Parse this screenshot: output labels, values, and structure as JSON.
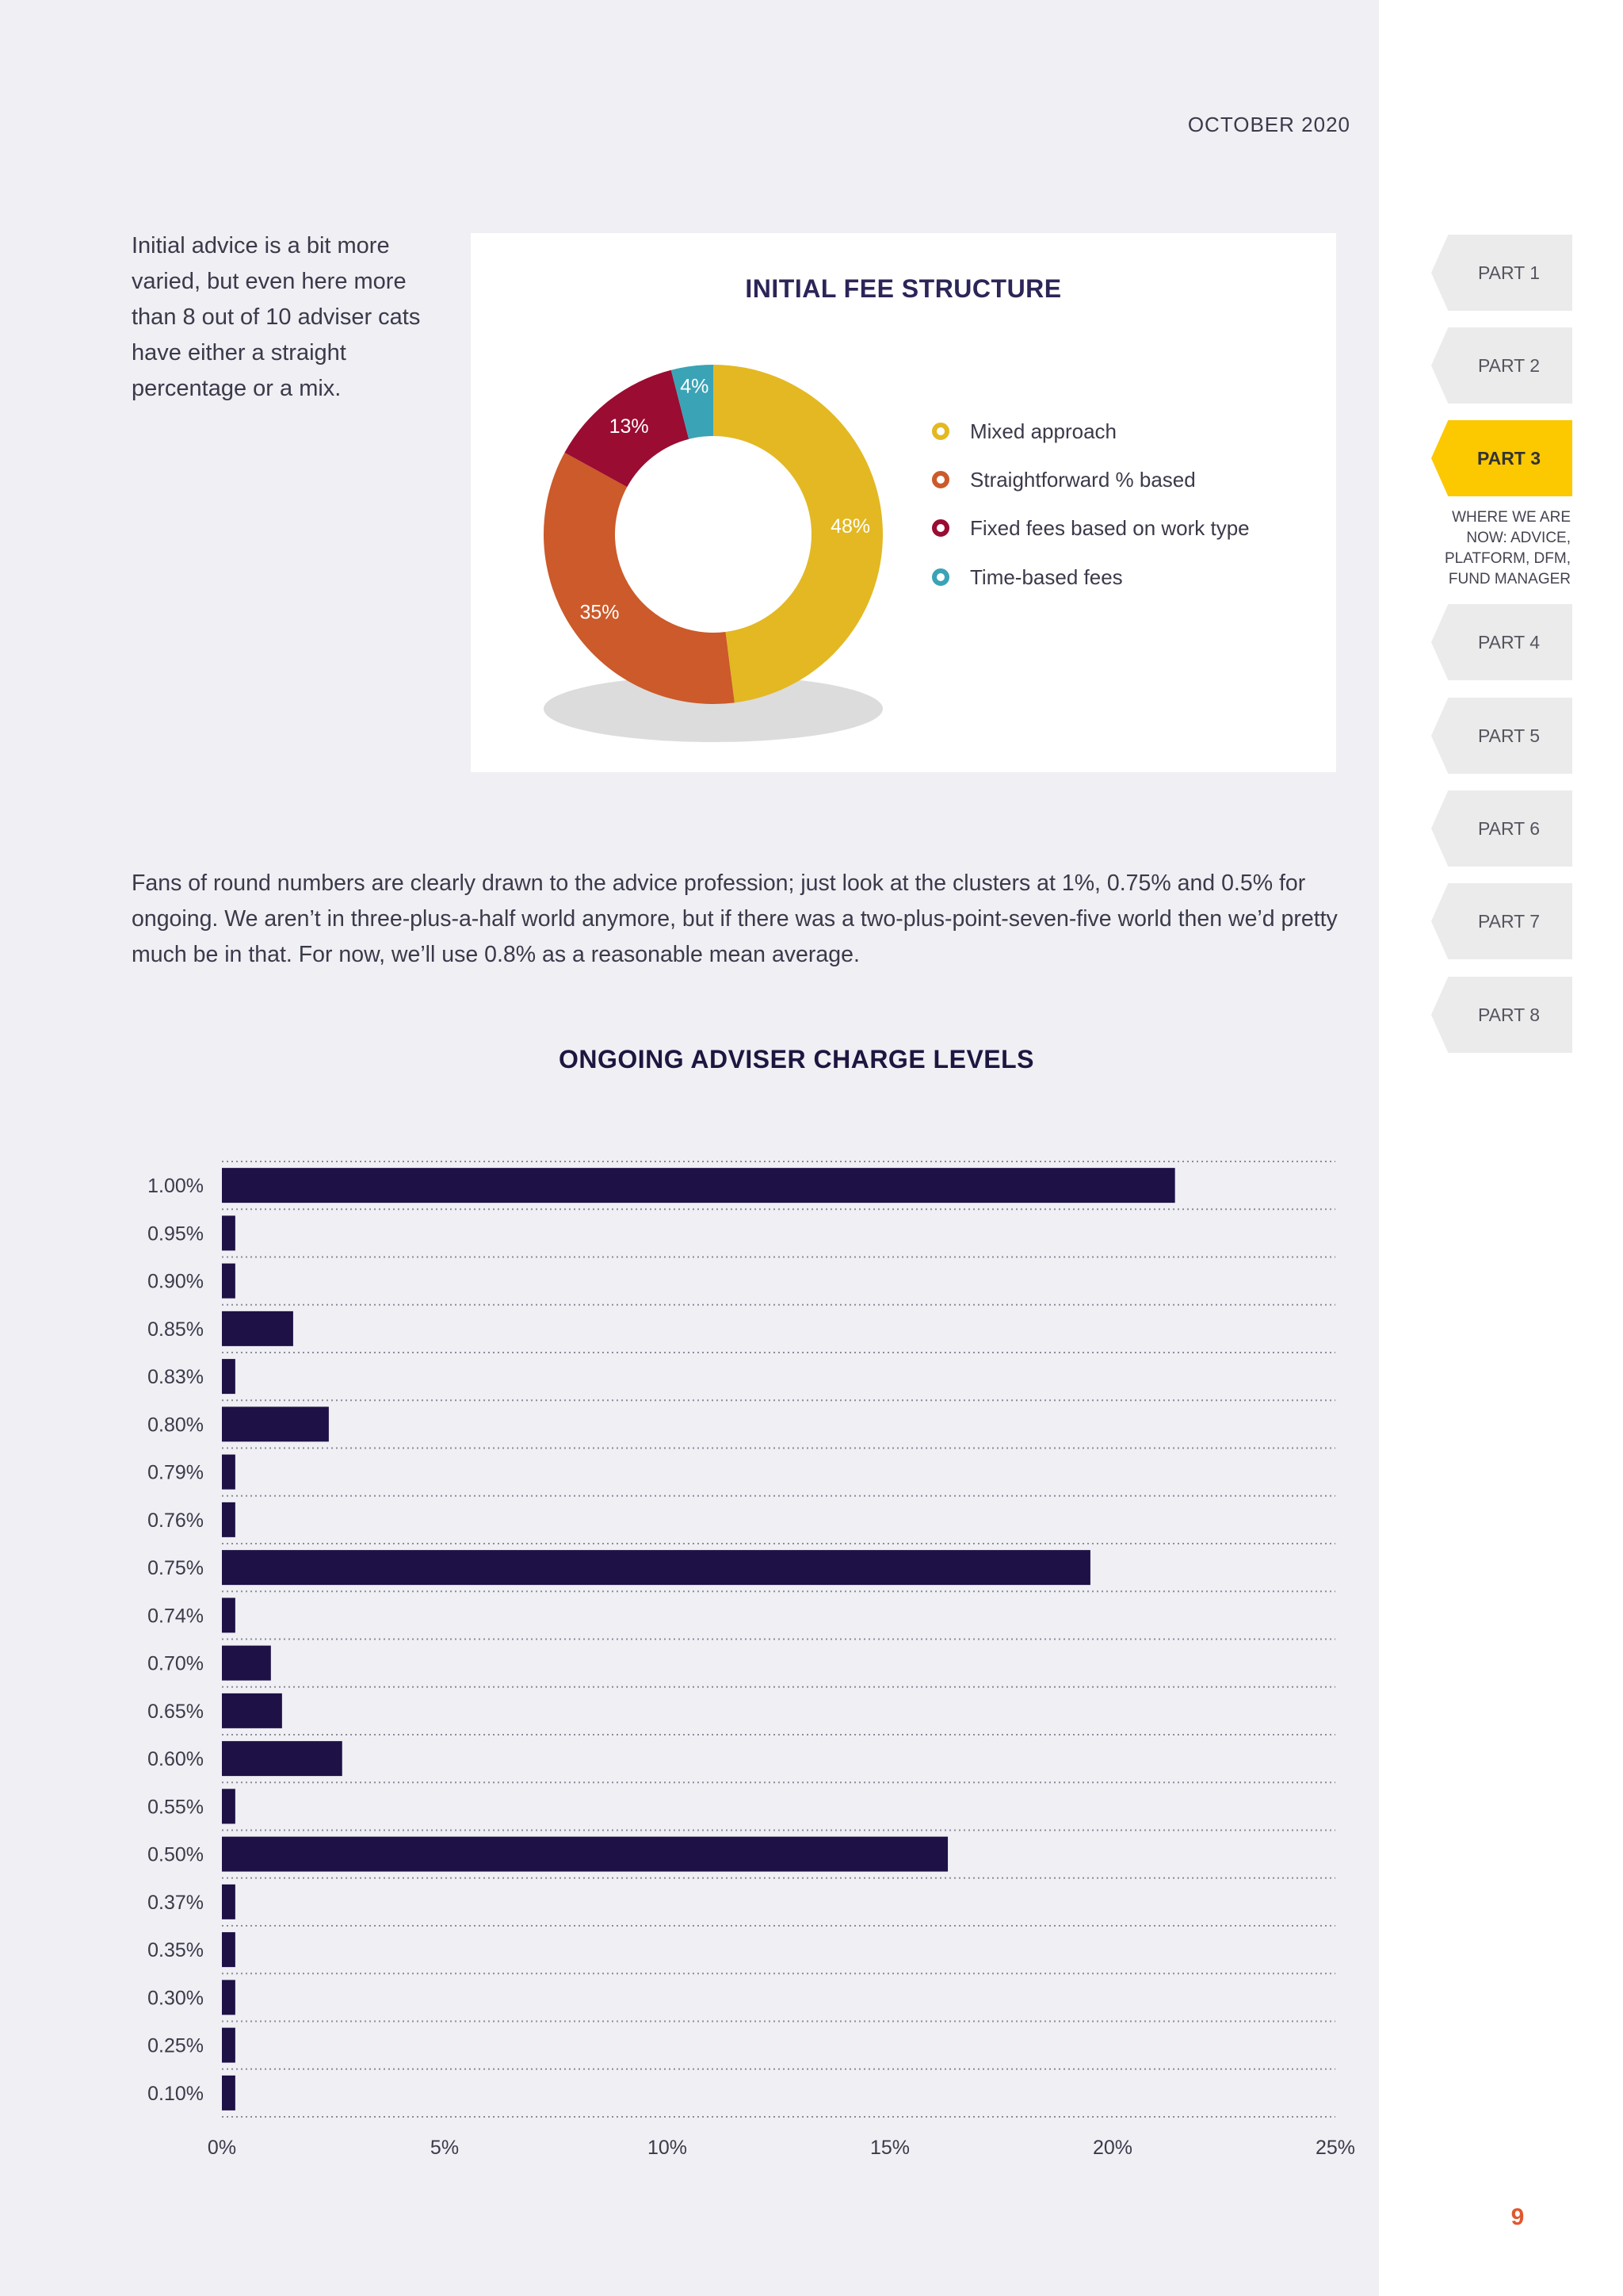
{
  "header": {
    "date": "OCTOBER 2020"
  },
  "intro": {
    "text": "Initial advice is a bit more varied, but even here more than 8 out of 10 adviser cats have either a straight percentage or a mix."
  },
  "body": {
    "text": "Fans of round numbers are clearly drawn to the advice profession; just look at the clusters at 1%, 0.75% and 0.5% for ongoing. We aren’t in three-plus-a-half world anymore, but if there was a two-plus-point-seven-five world then we’d pretty much be in that. For now, we’ll use 0.8% as a reasonable mean average."
  },
  "nav": {
    "tabs": [
      {
        "label": "PART 1",
        "active": false
      },
      {
        "label": "PART 2",
        "active": false
      },
      {
        "label": "PART 3",
        "active": true
      },
      {
        "label": "PART 4",
        "active": false
      },
      {
        "label": "PART 5",
        "active": false
      },
      {
        "label": "PART 6",
        "active": false
      },
      {
        "label": "PART 7",
        "active": false
      },
      {
        "label": "PART 8",
        "active": false
      }
    ],
    "active_subtitle": "WHERE WE ARE NOW: ADVICE, PLATFORM, DFM, FUND MANAGER"
  },
  "page_number": "9",
  "chart_data": [
    {
      "type": "pie",
      "variant": "donut",
      "title": "INITIAL FEE STRUCTURE",
      "slices": [
        {
          "label": "Mixed approach",
          "value": 48,
          "display": "48%",
          "color": "#e3b822"
        },
        {
          "label": "Straightforward % based",
          "value": 35,
          "display": "35%",
          "color": "#cc5a2a"
        },
        {
          "label": "Fixed fees based on work type",
          "value": 13,
          "display": "13%",
          "color": "#9a0c32"
        },
        {
          "label": "Time-based fees",
          "value": 4,
          "display": "4%",
          "color": "#3aa3b6"
        }
      ],
      "legend_position": "right"
    },
    {
      "type": "bar",
      "orientation": "horizontal",
      "title": "ONGOING ADVISER CHARGE LEVELS",
      "categories": [
        "1.00%",
        "0.95%",
        "0.90%",
        "0.85%",
        "0.83%",
        "0.80%",
        "0.79%",
        "0.76%",
        "0.75%",
        "0.74%",
        "0.70%",
        "0.65%",
        "0.60%",
        "0.55%",
        "0.50%",
        "0.37%",
        "0.35%",
        "0.30%",
        "0.25%",
        "0.10%"
      ],
      "values": [
        21.4,
        0.3,
        0.3,
        1.6,
        0.3,
        2.4,
        0.3,
        0.3,
        19.5,
        0.3,
        1.1,
        1.35,
        2.7,
        0.3,
        16.3,
        0.3,
        0.3,
        0.3,
        0.3,
        0.3
      ],
      "xlim": [
        0,
        25
      ],
      "xticks": [
        "0%",
        "5%",
        "10%",
        "15%",
        "20%",
        "25%"
      ],
      "xtick_values": [
        0,
        5,
        10,
        15,
        20,
        25
      ],
      "bar_color": "#1e1146",
      "grid": "dotted horizontal"
    }
  ]
}
